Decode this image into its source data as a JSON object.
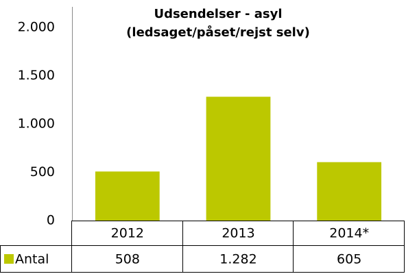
{
  "chart_data": {
    "type": "bar",
    "title": "Udsendelser - asyl",
    "subtitle": "(ledsaget/påset/rejst selv)",
    "categories": [
      "2012",
      "2013",
      "2014*"
    ],
    "series": [
      {
        "name": "Antal",
        "color": "#bcc800",
        "values": [
          508,
          1282,
          605
        ],
        "value_labels": [
          "508",
          "1.282",
          "605"
        ]
      }
    ],
    "ylim": [
      0,
      2000
    ],
    "yticks": [
      0,
      500,
      {
        "value": 1000,
        "label": "1.000"
      },
      {
        "value": 1500,
        "label": "1.500"
      },
      {
        "value": 2000,
        "label": "2.000"
      }
    ],
    "grid": false
  }
}
